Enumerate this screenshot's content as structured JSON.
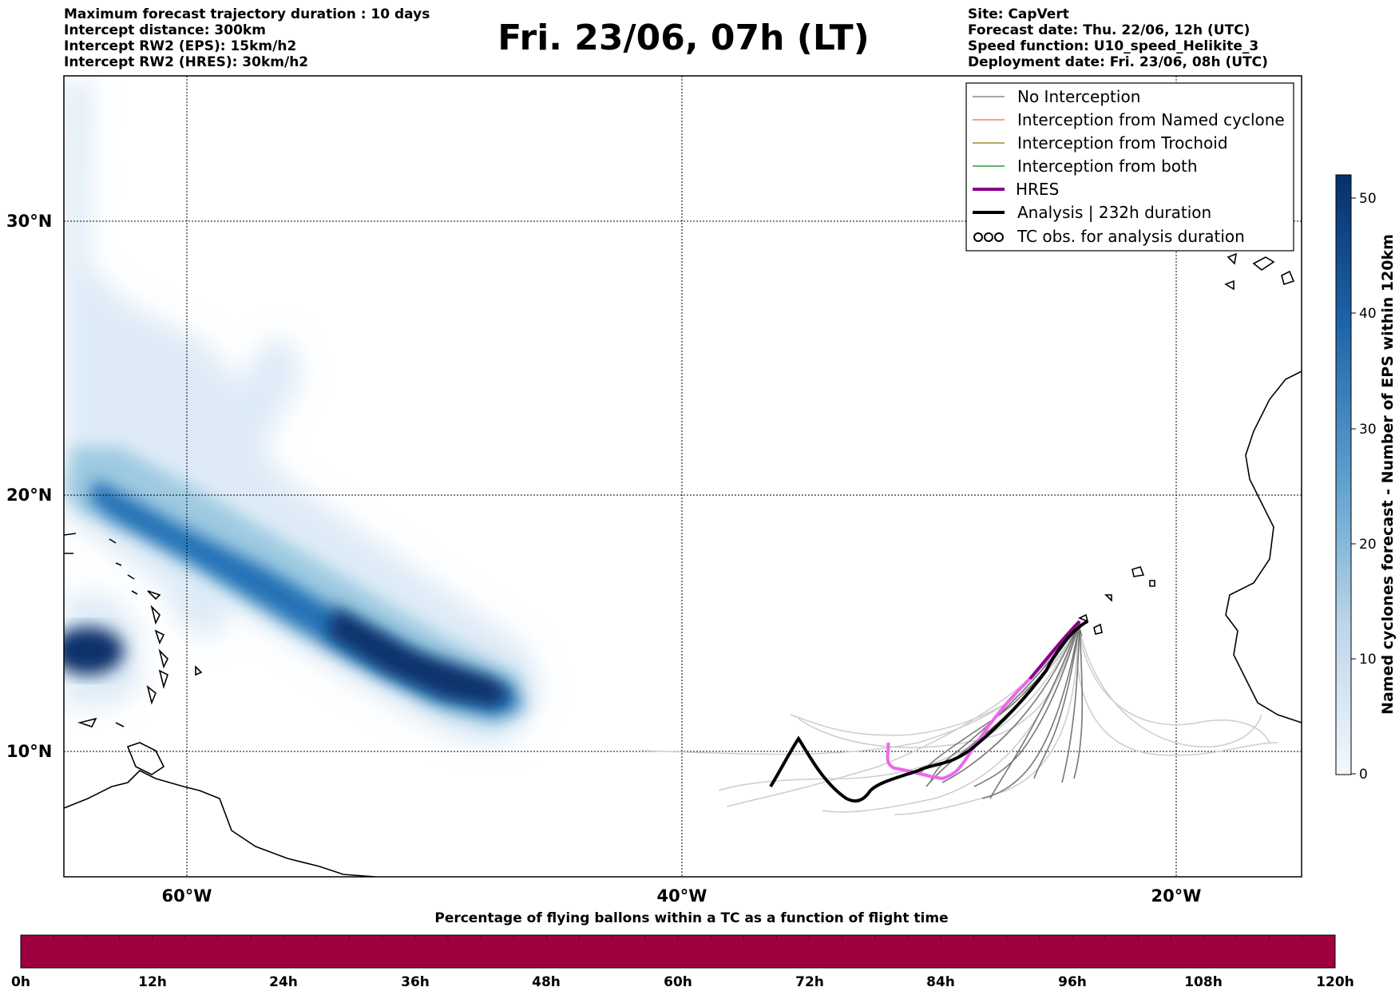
{
  "header_left": [
    "Maximum forecast trajectory duration : 10 days",
    "Intercept distance: 300km",
    "Intercept RW2 (EPS):  15km/h2",
    "Intercept RW2 (HRES): 30km/h2"
  ],
  "title": "Fri. 23/06, 07h (LT)",
  "header_right": [
    "Site: CapVert",
    "Forecast date: Thu. 22/06, 12h (UTC)",
    "Speed function: U10_speed_Helikite_3",
    "Deployment date: Fri. 23/06, 08h (UTC)"
  ],
  "map": {
    "lat_labels": [
      "30°N",
      "20°N",
      "10°N"
    ],
    "lon_labels": [
      "60°W",
      "40°W",
      "20°W"
    ]
  },
  "legend": {
    "items": [
      {
        "label": "No Interception",
        "color": "#888888"
      },
      {
        "label": "Interception from Named cyclone",
        "color": "#ff7f50"
      },
      {
        "label": "Interception from Trochoid",
        "color": "#9a8a2e"
      },
      {
        "label": "Interception from both",
        "color": "#2ca02c"
      },
      {
        "label": "HRES",
        "color": "#8b008b"
      },
      {
        "label": "Analysis | 232h duration",
        "color": "#000000"
      },
      {
        "label": "TC obs. for analysis duration",
        "color": "#000000"
      }
    ]
  },
  "colorbar": {
    "label": "Named cyclones forecast - Number of EPS within 120km",
    "ticks": [
      "0",
      "10",
      "20",
      "30",
      "40",
      "50"
    ]
  },
  "flight_bar": {
    "title": "Percentage of flying ballons within a TC as a function of flight time",
    "ticks": [
      "0h",
      "12h",
      "24h",
      "36h",
      "48h",
      "60h",
      "72h",
      "84h",
      "96h",
      "108h",
      "120h"
    ],
    "color": "#9e0040"
  }
}
